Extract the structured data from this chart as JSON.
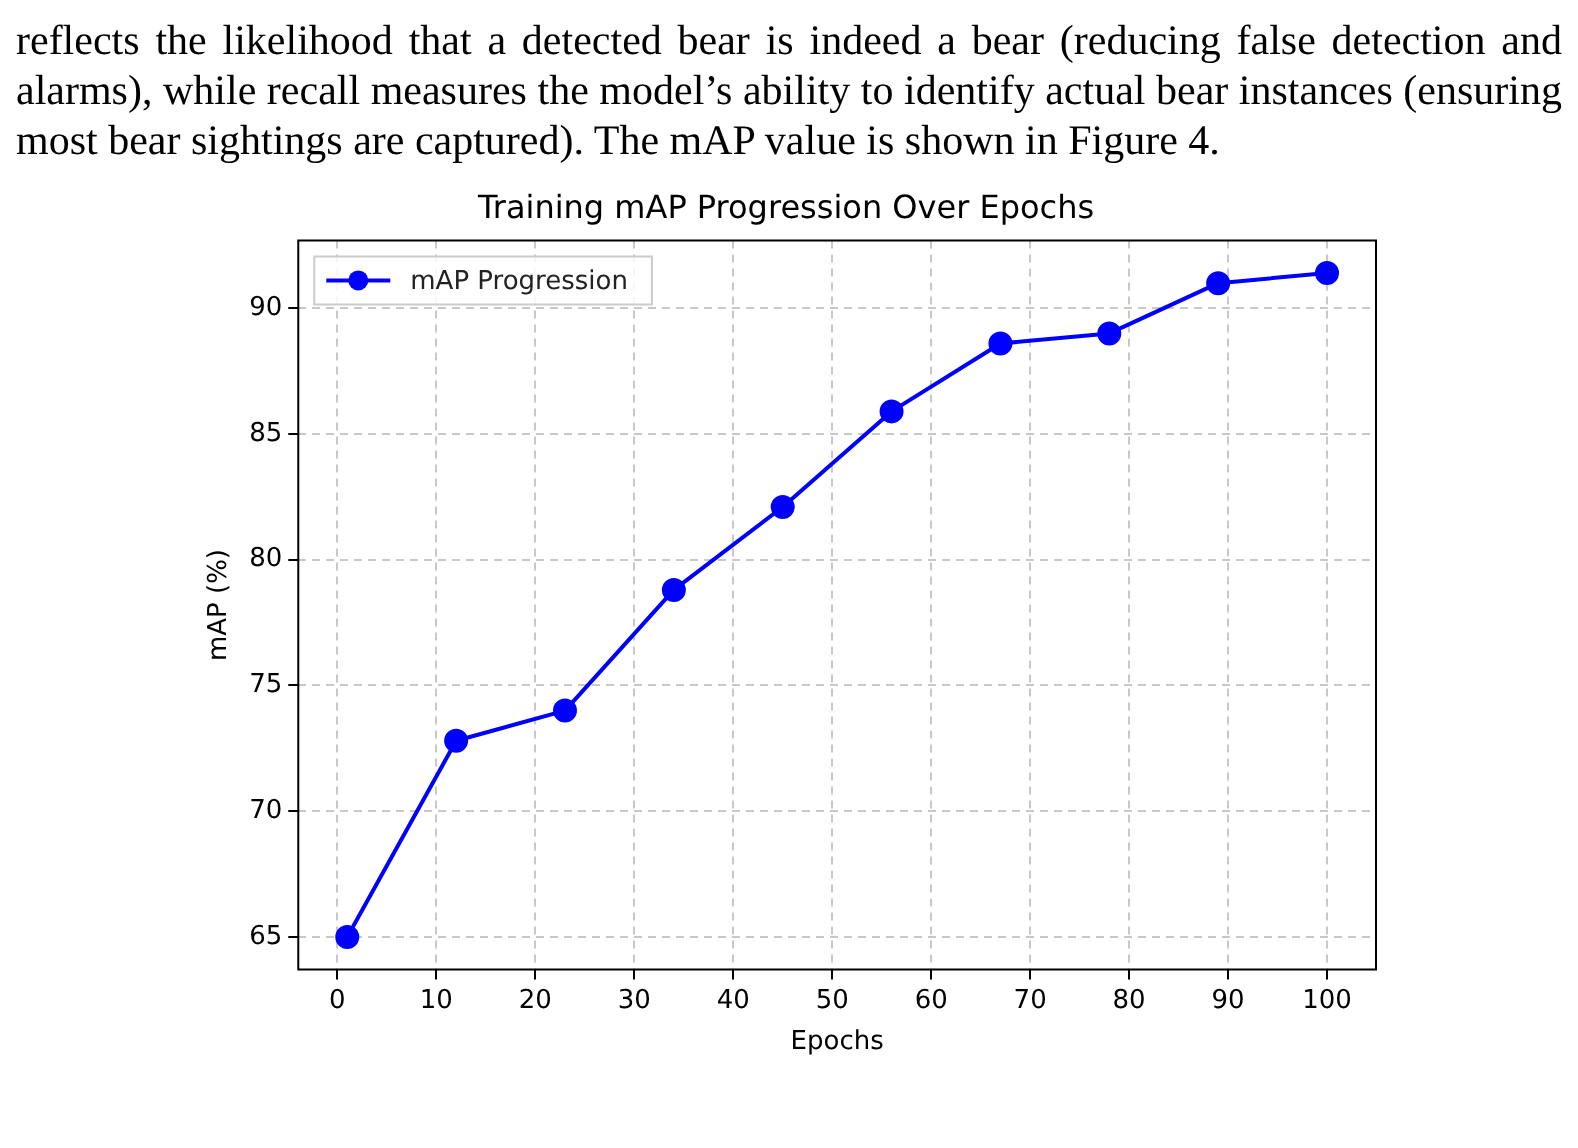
{
  "chart_data": {
    "type": "line",
    "title": "Training mAP Progression Over Epochs",
    "xlabel": "Epochs",
    "ylabel": "mAP (%)",
    "annotations": [
      "reflects the likelihood that a detected bear is indeed a bear (reducing false detection and alarms), while recall measures the model’s ability to identify actual bear instances (ensuring most bear sightings are captured). The mAP value is shown in Figure 4."
    ],
    "x": [
      1,
      12,
      23,
      34,
      45,
      56,
      67,
      78,
      89,
      100
    ],
    "series": [
      {
        "name": "mAP Progression",
        "color": "#0000ff",
        "values": [
          65.0,
          72.8,
          74.0,
          78.8,
          82.1,
          85.9,
          88.6,
          89.0,
          91.0,
          91.4
        ]
      }
    ],
    "xlim": [
      -3.95,
      104.95
    ],
    "xticks": [
      0,
      10,
      20,
      30,
      40,
      50,
      60,
      70,
      80,
      90,
      100
    ],
    "ylim": [
      63.7,
      92.7
    ],
    "yticks": [
      65,
      70,
      75,
      80,
      85,
      90
    ],
    "grid": true,
    "legend": "top left",
    "marker": "circle",
    "line_style": "solid"
  }
}
